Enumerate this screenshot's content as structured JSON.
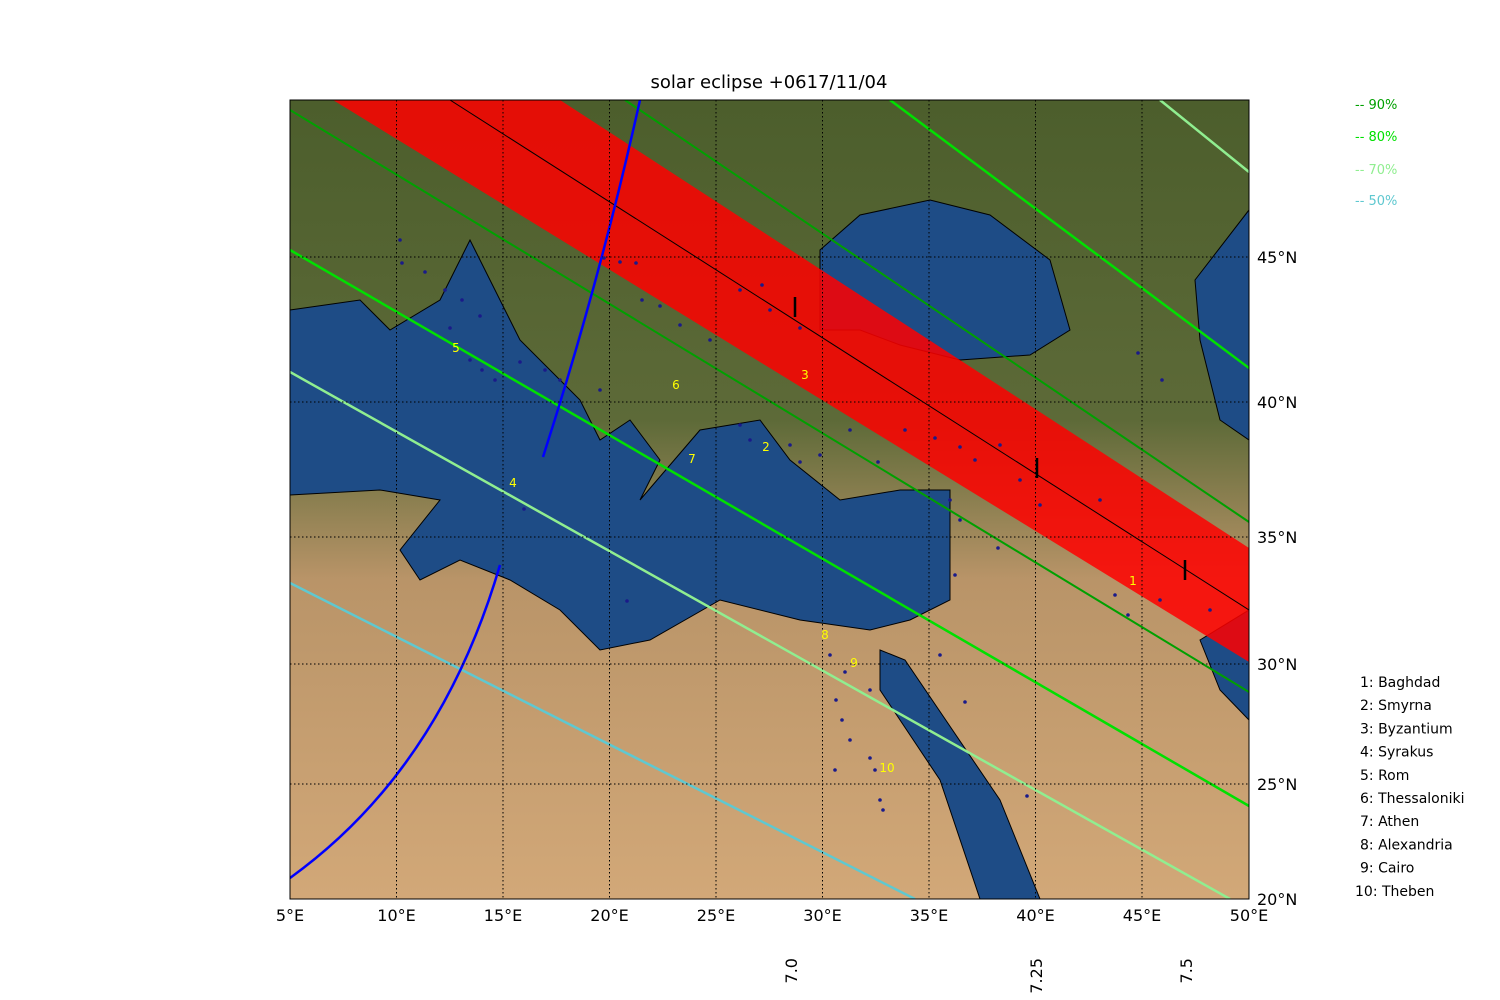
{
  "title": "solar eclipse +0617/11/04",
  "x_axis": {
    "ticks": [
      "5°E",
      "10°E",
      "15°E",
      "20°E",
      "25°E",
      "30°E",
      "35°E",
      "40°E",
      "45°E",
      "50°E"
    ]
  },
  "y_axis": {
    "ticks": [
      "20°N",
      "25°N",
      "30°N",
      "35°N",
      "40°N",
      "45°N"
    ]
  },
  "time_labels": [
    "7.0",
    "7.25",
    "7.5"
  ],
  "magnitude_legend": [
    {
      "label": "-- 90%",
      "color": "#00a000"
    },
    {
      "label": "-- 80%",
      "color": "#00e000"
    },
    {
      "label": "-- 70%",
      "color": "#90ee90"
    },
    {
      "label": "-- 50%",
      "color": "#5fc8d0"
    }
  ],
  "city_legend": [
    "1: Baghdad",
    "2: Smyrna",
    "3: Byzantium",
    "4: Syrakus",
    "5: Rom",
    "6: Thessaloniki",
    "7: Athen",
    "8: Alexandria",
    "9: Cairo",
    "10: Theben"
  ],
  "map_labels": [
    "1",
    "2",
    "3",
    "4",
    "5",
    "6",
    "7",
    "8",
    "9",
    "10"
  ]
}
